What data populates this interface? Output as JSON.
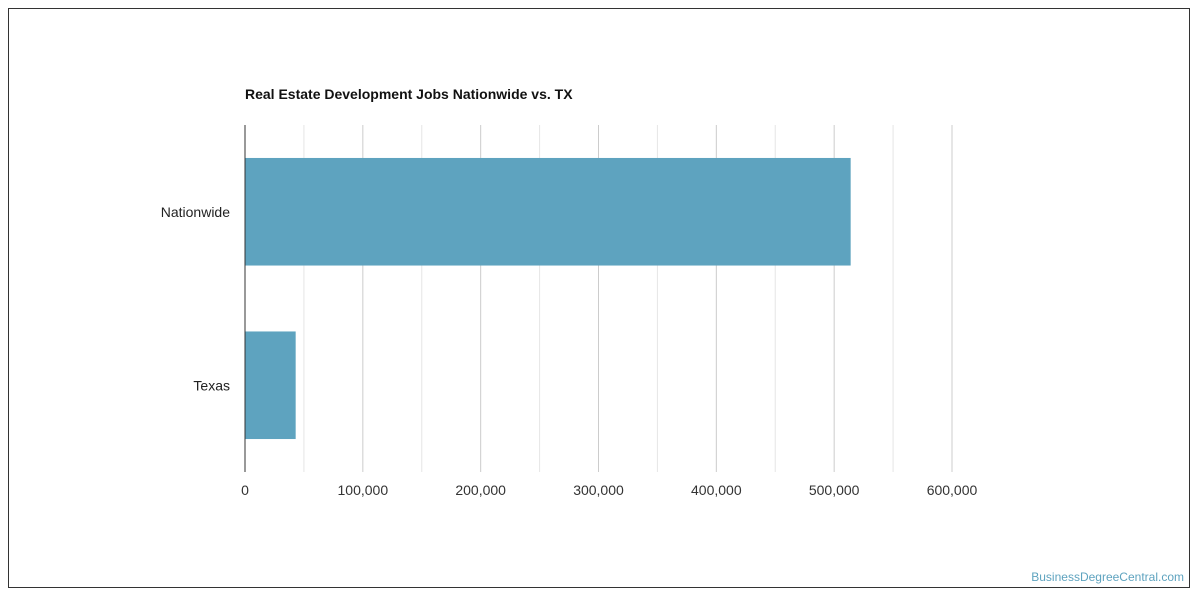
{
  "chart_data": {
    "type": "bar",
    "orientation": "horizontal",
    "title": "Real Estate Development Jobs Nationwide vs. TX",
    "categories": [
      "Nationwide",
      "Texas"
    ],
    "values": [
      514000,
      43000
    ],
    "xlim": [
      0,
      600000
    ],
    "ticks": [
      0,
      100000,
      200000,
      300000,
      400000,
      500000,
      600000
    ],
    "tick_labels": [
      "0",
      "100,000",
      "200,000",
      "300,000",
      "400,000",
      "500,000",
      "600,000"
    ],
    "grid": true,
    "bar_color": "#5ea3bf"
  },
  "credit": "BusinessDegreeCentral.com"
}
